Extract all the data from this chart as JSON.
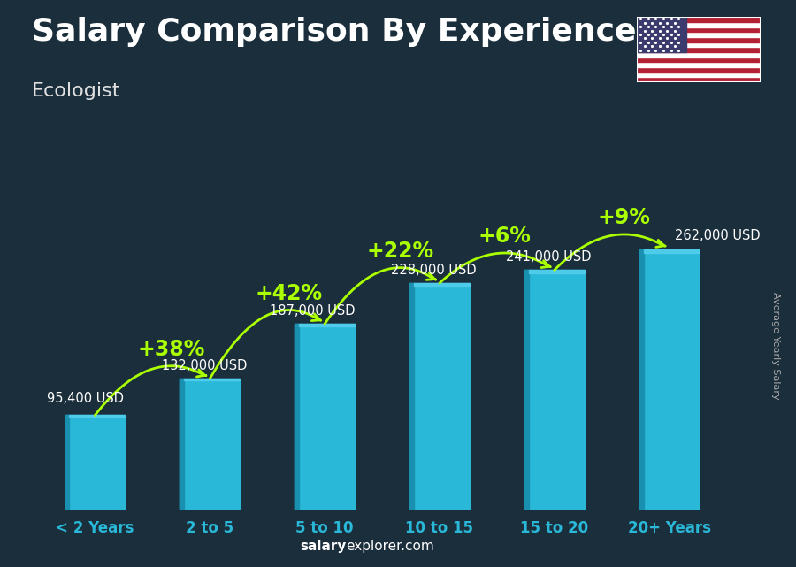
{
  "title": "Salary Comparison By Experience",
  "subtitle": "Ecologist",
  "ylabel": "Average Yearly Salary",
  "footer_bold": "salary",
  "footer_normal": "explorer.com",
  "categories": [
    "< 2 Years",
    "2 to 5",
    "5 to 10",
    "10 to 15",
    "15 to 20",
    "20+ Years"
  ],
  "values": [
    95400,
    132000,
    187000,
    228000,
    241000,
    262000
  ],
  "labels": [
    "95,400 USD",
    "132,000 USD",
    "187,000 USD",
    "228,000 USD",
    "241,000 USD",
    "262,000 USD"
  ],
  "pct_labels": [
    "+38%",
    "+42%",
    "+22%",
    "+6%",
    "+9%"
  ],
  "bar_color_face": "#2ab8d8",
  "bar_color_left": "#1a90b0",
  "bar_color_top": "#55d0ee",
  "bg_color": "#1b2e3c",
  "title_color": "#ffffff",
  "subtitle_color": "#e0e0e0",
  "label_color": "#ffffff",
  "pct_color": "#aaff00",
  "cat_color": "#2ab8d8",
  "footer_color": "#ffffff",
  "ylabel_color": "#aaaaaa",
  "title_fontsize": 26,
  "subtitle_fontsize": 16,
  "cat_fontsize": 12,
  "label_fontsize": 10.5,
  "pct_fontsize": 17,
  "ylabel_fontsize": 8,
  "footer_fontsize": 11,
  "ylim": [
    0,
    330000
  ],
  "xlim": [
    -0.55,
    5.55
  ]
}
